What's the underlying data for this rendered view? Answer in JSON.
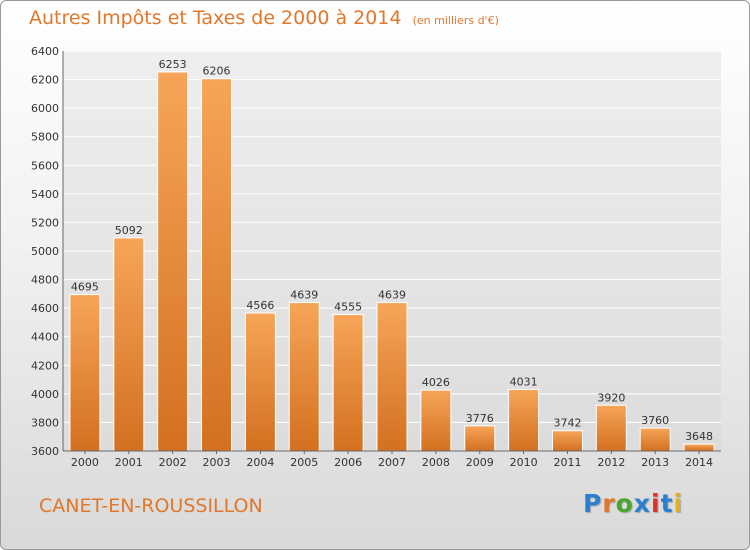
{
  "header": {
    "title": "Autres Impôts et Taxes de 2000 à 2014",
    "subtitle": "(en milliers d'€)"
  },
  "footer": {
    "location": "CANET-EN-ROUSSILLON",
    "brand": "Proxiti",
    "brand_colors": [
      "#2a7fd0",
      "#e0782c",
      "#4aa52e",
      "#2a7fd0",
      "#e03030",
      "#2a7fd0",
      "#e0b020"
    ]
  },
  "colors": {
    "accent": "#e0782c",
    "bar_top": "#f6a558",
    "bar_bottom": "#d47020"
  },
  "chart_data": {
    "type": "bar",
    "title": "Autres Impôts et Taxes de 2000 à 2014",
    "subtitle": "(en milliers d'€)",
    "xlabel": "",
    "ylabel": "",
    "categories": [
      "2000",
      "2001",
      "2002",
      "2003",
      "2004",
      "2005",
      "2006",
      "2007",
      "2008",
      "2009",
      "2010",
      "2011",
      "2012",
      "2013",
      "2014"
    ],
    "values": [
      4695,
      5092,
      6253,
      6206,
      4566,
      4639,
      4555,
      4639,
      4026,
      3776,
      4031,
      3742,
      3920,
      3760,
      3648
    ],
    "ylim": [
      3600,
      6400
    ],
    "yticks": [
      3600,
      3800,
      4000,
      4200,
      4400,
      4600,
      4800,
      5000,
      5200,
      5400,
      5600,
      5800,
      6000,
      6200,
      6400
    ],
    "grid": true,
    "legend": "none"
  }
}
